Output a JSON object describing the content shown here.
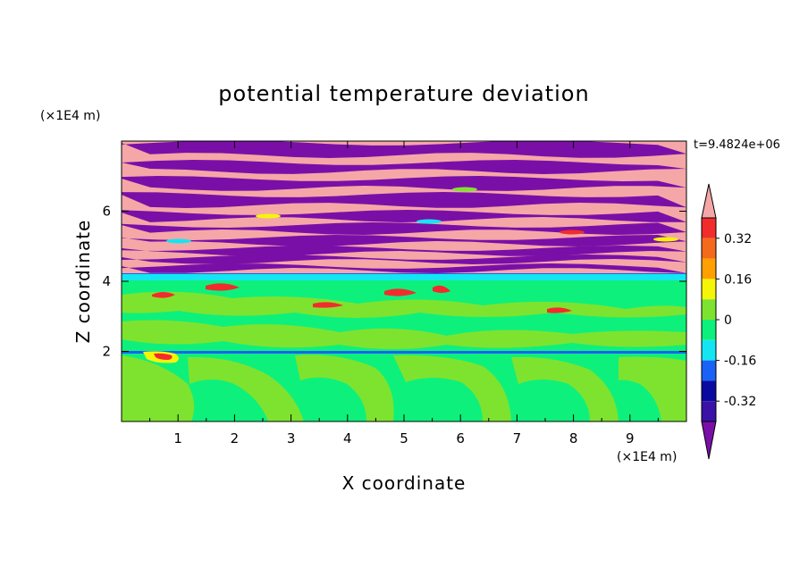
{
  "chart_data": {
    "type": "heatmap",
    "title": "potential temperature deviation",
    "xlabel": "X coordinate",
    "ylabel": "Z coordinate",
    "x_unit_label": "(×1E4 m)",
    "y_unit_label": "(×1E4 m)",
    "time_label": "t=9.4824e+06",
    "xlim": [
      0,
      10
    ],
    "ylim": [
      0,
      8
    ],
    "x_ticks": [
      1,
      2,
      3,
      4,
      5,
      6,
      7,
      8,
      9
    ],
    "x_tick_labels": [
      "1",
      "2",
      "3",
      "4",
      "5",
      "6",
      "7",
      "8",
      "9"
    ],
    "y_ticks": [
      2,
      4,
      6
    ],
    "y_tick_labels": [
      "2",
      "4",
      "6"
    ],
    "colorbar": {
      "levels": [
        -0.4,
        -0.32,
        -0.24,
        -0.16,
        -0.08,
        0,
        0.08,
        0.16,
        0.24,
        0.32,
        0.4
      ],
      "colors": [
        "#7a0fa8",
        "#3a12a8",
        "#0a0aa0",
        "#1a62f5",
        "#13e6f2",
        "#0ef07c",
        "#7ee32e",
        "#f5f508",
        "#ffa000",
        "#f56a1a",
        "#f22c2c",
        "#f5a7a7"
      ],
      "labels": [
        "0.32",
        "0.16",
        "0",
        "-0.16",
        "-0.32"
      ],
      "label_values": [
        0.32,
        0.16,
        0,
        -0.16,
        -0.32
      ]
    },
    "bands": [
      {
        "z": [
          0,
          3.9
        ],
        "value": -0.02,
        "note": "lower layer near zero with patches of 0 to 0.08"
      },
      {
        "z": [
          3.9,
          4.1
        ],
        "value": -0.12,
        "note": "thin cyan/blue interface"
      },
      {
        "z": [
          4.1,
          8
        ],
        "value": "alternating > 0.4 and < -0.4",
        "note": "stacked horizontal strata"
      }
    ]
  }
}
